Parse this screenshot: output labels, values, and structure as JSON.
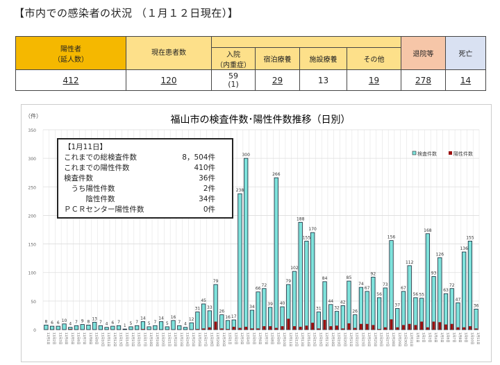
{
  "title": "【市内での感染者の状況 （１月１２日現在）】",
  "table": {
    "headers": {
      "positive": "陽性者",
      "positive_sub": "（延人数）",
      "current": "現在患者数",
      "hospital": "入院",
      "hospital_sub": "（内重症）",
      "hotel": "宿泊療養",
      "facility": "施設療養",
      "other": "その他",
      "discharged": "退院等",
      "death": "死亡"
    },
    "values": {
      "positive": "412",
      "current": "120",
      "hospital": "59",
      "hospital_sub": "(1)",
      "hotel": "29",
      "facility": "13",
      "other": "19",
      "discharged": "278",
      "death": "14"
    }
  },
  "summary": {
    "heading": "【1月11日】",
    "rows": [
      {
        "label": "これまでの総検査件数",
        "value": "8，504件"
      },
      {
        "label": "これまでの陽性件数",
        "value": "410件"
      },
      {
        "label": "検査件数",
        "value": "36件"
      },
      {
        "label": "　うち陽性件数",
        "value": "2件"
      },
      {
        "label": "　　　陰性件数",
        "value": "34件"
      },
      {
        "label": "ＰＣＲセンター陽性件数",
        "value": "0件"
      }
    ]
  },
  "colors": {
    "tests": "#7fe3dc",
    "positives": "#9b0f0f"
  },
  "chart_data": {
    "type": "bar",
    "title": "福山市の検査件数･陽性件数推移（日別）",
    "ylabel": "（件）",
    "ylim": [
      0,
      350
    ],
    "yticks": [
      0,
      50,
      100,
      150,
      200,
      250,
      300,
      350
    ],
    "legend": [
      "検査件数",
      "陽性件数"
    ],
    "legend_position": "top-right",
    "categories": [
      "11月1日",
      "11月2日",
      "11月3日",
      "11月4日",
      "11月5日",
      "11月6日",
      "11月7日",
      "11月8日",
      "11月9日",
      "11月10日",
      "11月11日",
      "11月12日",
      "11月13日",
      "11月14日",
      "11月15日",
      "11月16日",
      "11月17日",
      "11月18日",
      "11月19日",
      "11月20日",
      "11月21日",
      "11月22日",
      "11月23日",
      "11月24日",
      "11月25日",
      "11月26日",
      "11月27日",
      "11月28日",
      "11月29日",
      "11月30日",
      "12月1日",
      "12月2日",
      "12月3日",
      "12月4日",
      "12月5日",
      "12月6日",
      "12月7日",
      "12月8日",
      "12月9日",
      "12月10日",
      "12月11日",
      "12月12日",
      "12月13日",
      "12月14日",
      "12月15日",
      "12月16日",
      "12月17日",
      "12月18日",
      "12月19日",
      "12月20日",
      "12月21日",
      "12月22日",
      "12月23日",
      "12月24日",
      "12月25日",
      "12月26日",
      "12月27日",
      "12月28日",
      "12月29日",
      "12月30日",
      "12月31日",
      "1月1日",
      "1月2日",
      "1月3日",
      "1月4日",
      "1月5日",
      "1月6日",
      "1月7日",
      "1月8日",
      "1月9日",
      "1月10日",
      "1月11日"
    ],
    "series": [
      {
        "name": "検査件数",
        "values": [
          8,
          6,
          6,
          10,
          4,
          7,
          9,
          8,
          13,
          7,
          4,
          6,
          7,
          1,
          5,
          7,
          14,
          5,
          7,
          14,
          5,
          16,
          7,
          4,
          12,
          31,
          45,
          33,
          79,
          26,
          16,
          17,
          238,
          300,
          34,
          66,
          72,
          39,
          266,
          40,
          79,
          102,
          188,
          155,
          170,
          31,
          84,
          44,
          32,
          42,
          85,
          26,
          74,
          67,
          92,
          56,
          73,
          156,
          37,
          67,
          112,
          56,
          55,
          168,
          93,
          126,
          63,
          72,
          47,
          136,
          155,
          36
        ]
      },
      {
        "name": "陽性件数",
        "values": [
          0,
          0,
          0,
          0,
          1,
          0,
          0,
          0,
          0,
          0,
          0,
          0,
          0,
          0,
          0,
          0,
          1,
          0,
          0,
          0,
          0,
          0,
          0,
          0,
          0,
          1,
          2,
          4,
          14,
          2,
          1,
          5,
          3,
          5,
          2,
          2,
          6,
          6,
          3,
          6,
          19,
          6,
          5,
          7,
          12,
          2,
          17,
          6,
          7,
          2,
          11,
          3,
          10,
          10,
          8,
          1,
          4,
          18,
          4,
          8,
          10,
          8,
          14,
          4,
          14,
          13,
          9,
          10,
          4,
          4,
          6,
          2
        ]
      }
    ]
  }
}
